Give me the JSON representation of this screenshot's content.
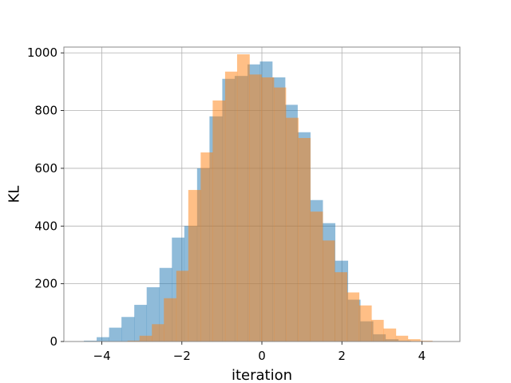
{
  "chart_data": {
    "type": "bar",
    "title": "",
    "xlabel": "iteration",
    "ylabel": "KL",
    "xlim": [
      -4.95,
      4.95
    ],
    "ylim": [
      0,
      1020
    ],
    "xticks": [
      -4,
      -2,
      0,
      2,
      4
    ],
    "xtick_labels": [
      "−4",
      "−2",
      "0",
      "2",
      "4"
    ],
    "yticks": [
      0,
      200,
      400,
      600,
      800,
      1000
    ],
    "ytick_labels": [
      "0",
      "200",
      "400",
      "600",
      "800",
      "1000"
    ],
    "grid": true,
    "series": [
      {
        "color": "#1f77b4",
        "alpha": 0.5,
        "bin_edges": [
          -4.45,
          -4.13,
          -3.82,
          -3.51,
          -3.19,
          -2.88,
          -2.56,
          -2.25,
          -1.94,
          -1.62,
          -1.31,
          -0.99,
          -0.68,
          -0.36,
          -0.05,
          0.26,
          0.58,
          0.89,
          1.21,
          1.52,
          1.83,
          2.15,
          2.46,
          2.78,
          3.09,
          3.41,
          3.72,
          4.03
        ],
        "values": [
          3,
          15,
          48,
          85,
          127,
          188,
          255,
          360,
          400,
          600,
          780,
          910,
          920,
          960,
          970,
          915,
          820,
          725,
          490,
          410,
          280,
          145,
          70,
          25,
          8,
          3,
          1
        ]
      },
      {
        "color": "#ff7f0e",
        "alpha": 0.5,
        "bin_edges": [
          -3.36,
          -3.06,
          -2.75,
          -2.45,
          -2.14,
          -1.84,
          -1.53,
          -1.23,
          -0.92,
          -0.62,
          -0.31,
          -0.01,
          0.3,
          0.6,
          0.91,
          1.21,
          1.52,
          1.82,
          2.13,
          2.43,
          2.74,
          3.04,
          3.35,
          3.65,
          3.96,
          4.26,
          4.57
        ],
        "values": [
          3,
          20,
          60,
          150,
          245,
          525,
          655,
          835,
          935,
          995,
          925,
          915,
          880,
          775,
          705,
          450,
          350,
          240,
          170,
          125,
          75,
          45,
          20,
          8,
          3,
          1
        ]
      }
    ]
  }
}
